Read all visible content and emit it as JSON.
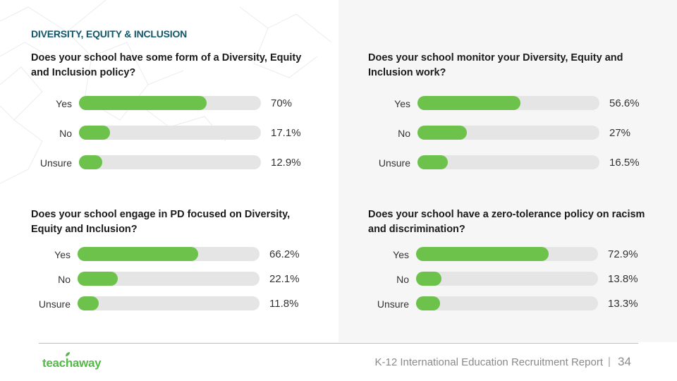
{
  "section_title": "DIVERSITY, EQUITY & INCLUSION",
  "colors": {
    "bar_fill": "#6cc24a",
    "bar_track": "#e5e5e5",
    "title": "#13566a",
    "brand": "#54b948"
  },
  "chart_data": [
    {
      "type": "bar",
      "title": "Does your school have some form of a Diversity, Equity and Inclusion policy?",
      "categories": [
        "Yes",
        "No",
        "Unsure"
      ],
      "values": [
        70,
        17.1,
        12.9
      ],
      "value_labels": [
        "70%",
        "17.1%",
        "12.9%"
      ],
      "ylim": [
        0,
        100
      ]
    },
    {
      "type": "bar",
      "title": "Does your school monitor your Diversity, Equity and Inclusion work?",
      "categories": [
        "Yes",
        "No",
        "Unsure"
      ],
      "values": [
        56.6,
        27,
        16.5
      ],
      "value_labels": [
        "56.6%",
        "27%",
        "16.5%"
      ],
      "ylim": [
        0,
        100
      ]
    },
    {
      "type": "bar",
      "title": "Does your school engage in PD focused on Diversity, Equity and Inclusion?",
      "categories": [
        "Yes",
        "No",
        "Unsure"
      ],
      "values": [
        66.2,
        22.1,
        11.8
      ],
      "value_labels": [
        "66.2%",
        "22.1%",
        "11.8%"
      ],
      "ylim": [
        0,
        100
      ]
    },
    {
      "type": "bar",
      "title": "Does your school have a zero-tolerance policy on racism and discrimination?",
      "categories": [
        "Yes",
        "No",
        "Unsure"
      ],
      "values": [
        72.9,
        13.8,
        13.3
      ],
      "value_labels": [
        "72.9%",
        "13.8%",
        "13.3%"
      ],
      "ylim": [
        0,
        100
      ]
    }
  ],
  "footer": {
    "logo": "teachaway",
    "report": "K-12 International Education Recruitment Report",
    "separator": "|",
    "page": "34"
  }
}
